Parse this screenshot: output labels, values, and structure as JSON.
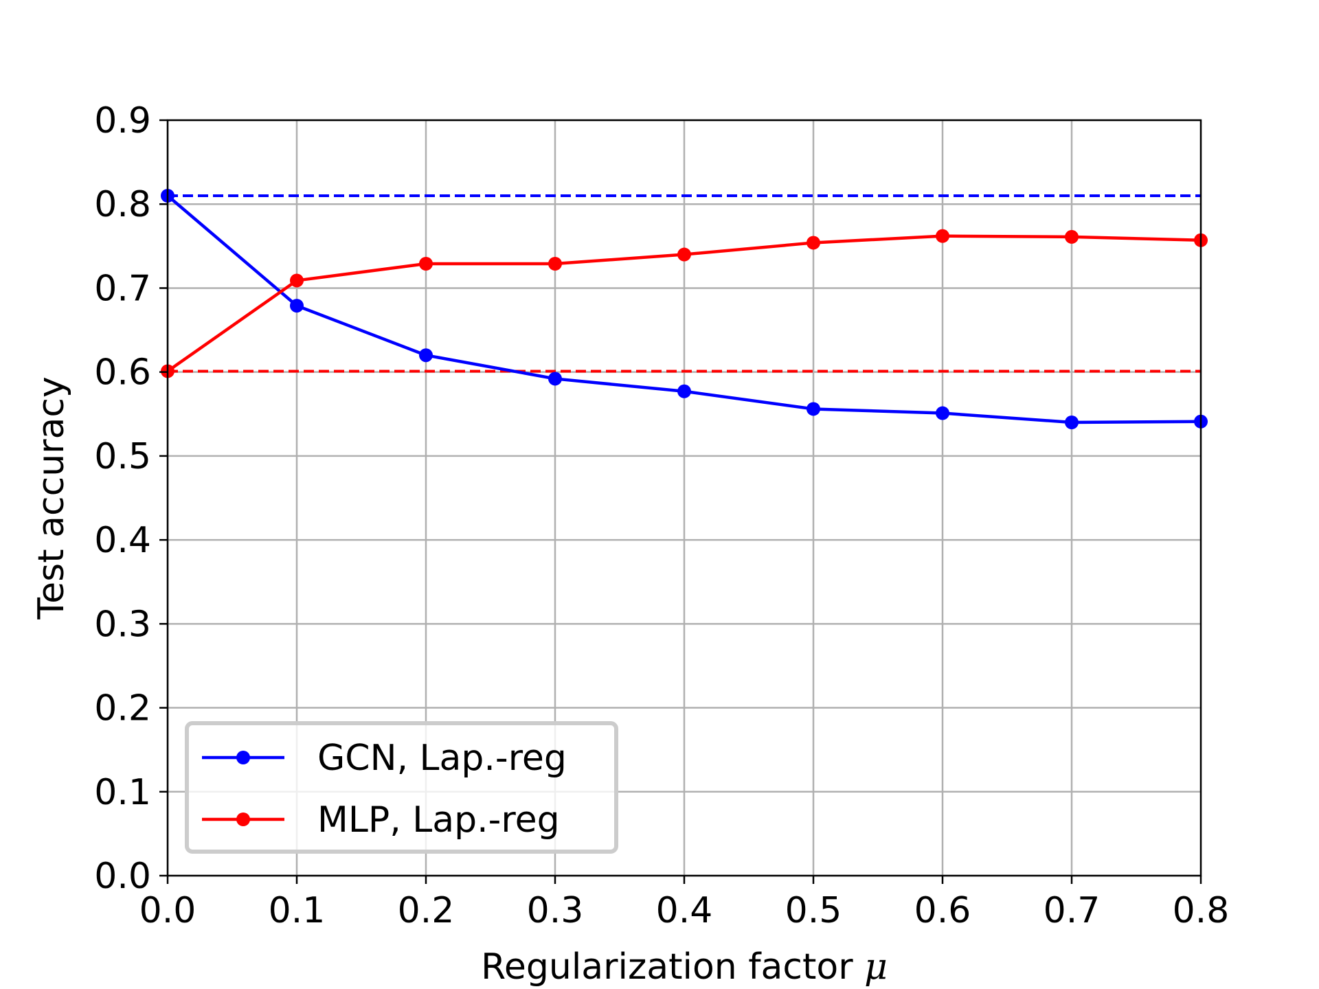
{
  "chart_data": {
    "type": "line",
    "title": "",
    "xlabel": "Regularization factor",
    "xlabel_symbol": "μ",
    "ylabel": "Test accuracy",
    "xlim": [
      0.0,
      0.8
    ],
    "ylim": [
      0.0,
      0.9
    ],
    "x_ticks": [
      "0.0",
      "0.1",
      "0.2",
      "0.3",
      "0.4",
      "0.5",
      "0.6",
      "0.7",
      "0.8"
    ],
    "y_ticks": [
      "0.0",
      "0.1",
      "0.2",
      "0.3",
      "0.4",
      "0.5",
      "0.6",
      "0.7",
      "0.8",
      "0.9"
    ],
    "grid": true,
    "legend_position": "lower-left",
    "x": [
      0.0,
      0.1,
      0.2,
      0.3,
      0.4,
      0.5,
      0.6,
      0.7,
      0.8
    ],
    "series": [
      {
        "name": "GCN, Lap.-reg",
        "color": "#0000ff",
        "marker": "circle",
        "values": [
          0.81,
          0.679,
          0.62,
          0.592,
          0.577,
          0.556,
          0.551,
          0.54,
          0.541
        ]
      },
      {
        "name": "MLP, Lap.-reg",
        "color": "#ff0000",
        "marker": "circle",
        "values": [
          0.601,
          0.709,
          0.729,
          0.729,
          0.74,
          0.754,
          0.762,
          0.761,
          0.757
        ]
      }
    ],
    "reference_lines": [
      {
        "color": "#0000ff",
        "style": "dashed",
        "y": 0.81
      },
      {
        "color": "#ff0000",
        "style": "dashed",
        "y": 0.601
      }
    ]
  }
}
